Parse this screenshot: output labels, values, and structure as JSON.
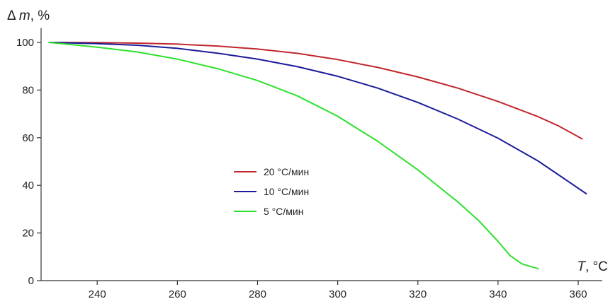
{
  "chart_data": {
    "type": "line",
    "ylabel": "Δ m, %",
    "ylabel_parts": {
      "prefix": "Δ ",
      "var": "m",
      "suffix": ", %"
    },
    "xlabel": "T, °C",
    "xlabel_parts": {
      "var": "T",
      "suffix": ", °C"
    },
    "xlim": [
      226,
      366
    ],
    "ylim": [
      0,
      106
    ],
    "xticks": [
      240,
      260,
      280,
      300,
      320,
      340,
      360
    ],
    "yticks": [
      0,
      20,
      40,
      60,
      80,
      100
    ],
    "grid": false,
    "legend_position": "center",
    "series": [
      {
        "name": "20 °C/мин",
        "color": "#c0272d",
        "x": [
          228,
          240,
          250,
          260,
          270,
          280,
          290,
          300,
          310,
          320,
          330,
          340,
          350,
          355,
          361
        ],
        "y": [
          100,
          99.9,
          99.7,
          99.3,
          98.5,
          97.2,
          95.4,
          92.8,
          89.5,
          85.5,
          80.8,
          75.2,
          68.8,
          65.0,
          59.5
        ]
      },
      {
        "name": "10 °C/мин",
        "color": "#1c1c9c",
        "x": [
          228,
          240,
          250,
          260,
          270,
          280,
          290,
          300,
          310,
          320,
          330,
          340,
          350,
          355,
          362
        ],
        "y": [
          100,
          99.5,
          98.8,
          97.5,
          95.5,
          93.0,
          89.8,
          85.8,
          80.8,
          74.8,
          67.8,
          59.8,
          50.2,
          44.5,
          36.5
        ]
      },
      {
        "name": "5 °C/мин",
        "color": "#2ee02e",
        "x": [
          228,
          240,
          250,
          260,
          270,
          280,
          290,
          300,
          310,
          320,
          330,
          335,
          340,
          343,
          346,
          350
        ],
        "y": [
          100,
          98.0,
          96.0,
          93.0,
          89.0,
          84.0,
          77.5,
          69.0,
          58.5,
          46.5,
          33.0,
          25.5,
          16.5,
          10.5,
          7.0,
          5.0
        ]
      }
    ]
  }
}
